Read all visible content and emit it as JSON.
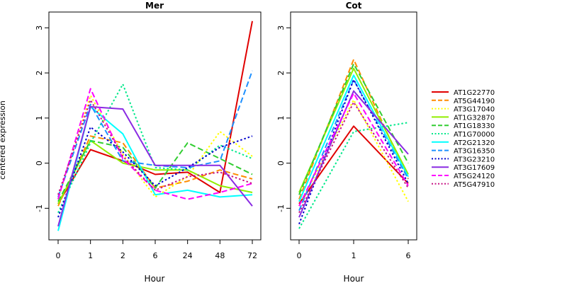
{
  "chart_data": {
    "type": "line",
    "ylabel": "centered expression",
    "yticks": [
      -1,
      0,
      1,
      2,
      3
    ],
    "ylim": [
      -1.7,
      3.35
    ],
    "grid": false,
    "legend_position": "right",
    "series_style": [
      {
        "name": "AT1G22770",
        "color": "#e00000",
        "dash": "solid"
      },
      {
        "name": "AT5G44190",
        "color": "#ff8c00",
        "dash": "dashed"
      },
      {
        "name": "AT3G17040",
        "color": "#ffff00",
        "dash": "dotted"
      },
      {
        "name": "AT1G32870",
        "color": "#90ee00",
        "dash": "solid"
      },
      {
        "name": "AT1G18330",
        "color": "#32cd32",
        "dash": "dashed"
      },
      {
        "name": "AT1G70000",
        "color": "#00e88a",
        "dash": "dotted"
      },
      {
        "name": "AT2G21320",
        "color": "#00ffff",
        "dash": "solid"
      },
      {
        "name": "AT3G16350",
        "color": "#1e90ff",
        "dash": "dashed"
      },
      {
        "name": "AT3G23210",
        "color": "#0000cd",
        "dash": "dotted"
      },
      {
        "name": "AT3G17609",
        "color": "#8a2be2",
        "dash": "solid"
      },
      {
        "name": "AT5G24120",
        "color": "#ff00ff",
        "dash": "dashed"
      },
      {
        "name": "AT5G47910",
        "color": "#c71585",
        "dash": "dotted"
      }
    ],
    "panels": [
      {
        "title": "Mer",
        "xlabel": "Hour",
        "categories": [
          "0",
          "1",
          "2",
          "6",
          "24",
          "48",
          "72"
        ],
        "series": [
          {
            "name": "AT1G22770",
            "values": [
              -0.9,
              0.3,
              0.05,
              -0.25,
              -0.2,
              -0.65,
              3.15
            ]
          },
          {
            "name": "AT5G44190",
            "values": [
              -0.95,
              0.6,
              0.45,
              -0.55,
              -0.4,
              -0.15,
              -0.35
            ]
          },
          {
            "name": "AT3G17040",
            "values": [
              -0.8,
              1.5,
              0.2,
              -0.75,
              -0.3,
              0.7,
              0.15
            ]
          },
          {
            "name": "AT1G32870",
            "values": [
              -0.9,
              0.5,
              0.0,
              -0.15,
              -0.15,
              -0.5,
              -0.65
            ]
          },
          {
            "name": "AT1G18330",
            "values": [
              -0.85,
              0.5,
              0.35,
              -0.55,
              0.45,
              0.1,
              -0.25
            ]
          },
          {
            "name": "AT1G70000",
            "values": [
              -1.1,
              0.45,
              1.75,
              -0.1,
              -0.15,
              0.4,
              0.1
            ]
          },
          {
            "name": "AT2G21320",
            "values": [
              -1.5,
              1.25,
              0.65,
              -0.7,
              -0.6,
              -0.75,
              -0.7
            ]
          },
          {
            "name": "AT3G16350",
            "values": [
              -0.75,
              1.3,
              0.05,
              -0.05,
              -0.1,
              0.05,
              2.05
            ]
          },
          {
            "name": "AT3G23210",
            "values": [
              -1.2,
              0.8,
              0.25,
              -0.5,
              -0.1,
              0.35,
              0.6
            ]
          },
          {
            "name": "AT3G17609",
            "values": [
              -1.4,
              1.25,
              1.2,
              -0.05,
              -0.05,
              -0.05,
              -0.95
            ]
          },
          {
            "name": "AT5G24120",
            "values": [
              -0.8,
              1.65,
              0.1,
              -0.6,
              -0.8,
              -0.65,
              -0.45
            ]
          },
          {
            "name": "AT5G47910",
            "values": [
              -0.7,
              1.4,
              0.15,
              -0.6,
              -0.3,
              -0.2,
              -0.45
            ]
          }
        ]
      },
      {
        "title": "Cot",
        "xlabel": "Hour",
        "categories": [
          "0",
          "1",
          "6"
        ],
        "series": [
          {
            "name": "AT1G22770",
            "values": [
              -0.9,
              0.82,
              -0.45
            ]
          },
          {
            "name": "AT5G44190",
            "values": [
              -0.8,
              2.3,
              -0.35
            ]
          },
          {
            "name": "AT3G17040",
            "values": [
              -0.95,
              1.4,
              -0.85
            ]
          },
          {
            "name": "AT1G32870",
            "values": [
              -0.65,
              2.1,
              -0.25
            ]
          },
          {
            "name": "AT1G18330",
            "values": [
              -0.7,
              2.2,
              0.0
            ]
          },
          {
            "name": "AT1G70000",
            "values": [
              -1.45,
              0.7,
              0.9
            ]
          },
          {
            "name": "AT2G21320",
            "values": [
              -0.85,
              1.95,
              -0.3
            ]
          },
          {
            "name": "AT3G16350",
            "values": [
              -1.05,
              1.85,
              -0.35
            ]
          },
          {
            "name": "AT3G23210",
            "values": [
              -1.35,
              1.85,
              -0.45
            ]
          },
          {
            "name": "AT3G17609",
            "values": [
              -1.2,
              1.6,
              0.2
            ]
          },
          {
            "name": "AT5G24120",
            "values": [
              -0.95,
              1.55,
              -0.5
            ]
          },
          {
            "name": "AT5G47910",
            "values": [
              -1.1,
              1.35,
              -0.55
            ]
          }
        ]
      }
    ]
  }
}
